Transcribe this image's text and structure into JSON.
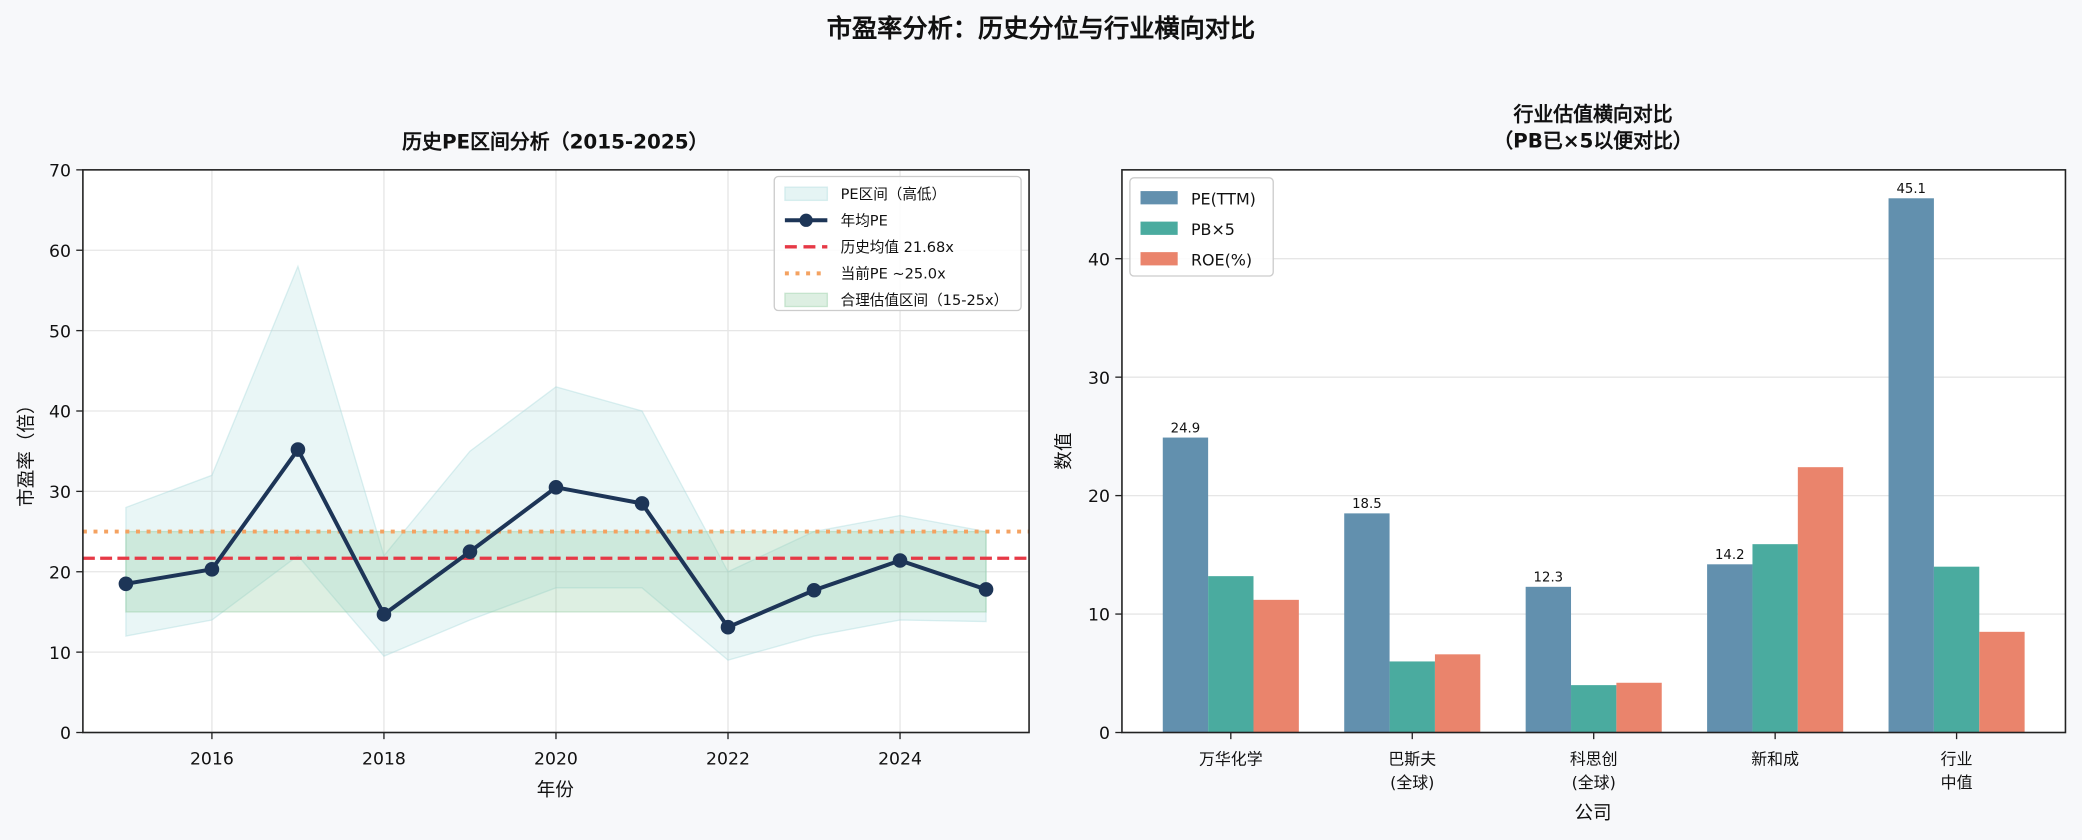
{
  "suptitle": "市盈率分析：历史分位与行业横向对比",
  "colors": {
    "background": "#f7f8fa",
    "pe_line": "#1d3557",
    "hist_mean": "#e63946",
    "current_pe": "#f4a261",
    "pe_range": "#a8dadc",
    "fair_band": "#8fca9e",
    "bar_pe": "#6290ae",
    "bar_pb": "#4aab9f",
    "bar_roe": "#ea846c"
  },
  "chart_data": [
    {
      "type": "line",
      "title": "历史PE区间分析（2015-2025）",
      "xlabel": "年份",
      "ylabel": "市盈率（倍）",
      "xlim": [
        2014.5,
        2025.5
      ],
      "ylim": [
        0,
        70
      ],
      "xticks": [
        2016,
        2018,
        2020,
        2022,
        2024
      ],
      "yticks": [
        0,
        10,
        20,
        30,
        40,
        50,
        60,
        70
      ],
      "grid": true,
      "legend_position": "top-right",
      "x": [
        2015,
        2016,
        2017,
        2018,
        2019,
        2020,
        2021,
        2022,
        2023,
        2024,
        2025
      ],
      "range_high": [
        28,
        32,
        58,
        22,
        35,
        43,
        40,
        20,
        25,
        27,
        25
      ],
      "range_low": [
        12,
        14,
        22,
        9.5,
        14,
        18,
        18,
        9,
        12,
        14,
        13.8
      ],
      "avg_pe": [
        18.5,
        20.3,
        35.2,
        14.7,
        22.5,
        30.5,
        28.5,
        13.1,
        17.7,
        21.4,
        17.8
      ],
      "hist_mean": 21.68,
      "current_pe": 25.0,
      "fair_band": [
        15,
        25
      ],
      "legend": [
        "PE区间（高低）",
        "年均PE",
        "历史均值 21.68x",
        "当前PE ~25.0x",
        "合理估值区间（15-25x）"
      ]
    },
    {
      "type": "bar",
      "title": "行业估值横向对比",
      "subtitle": "（PB已×5以便对比）",
      "xlabel": "公司",
      "ylabel": "数值",
      "ylim": [
        0,
        47.5
      ],
      "yticks": [
        0,
        10,
        20,
        30,
        40
      ],
      "grid": true,
      "legend_position": "top-left",
      "categories": [
        [
          "万华化学"
        ],
        [
          "巴斯夫",
          "(全球)"
        ],
        [
          "科思创",
          "(全球)"
        ],
        [
          "新和成"
        ],
        [
          "行业",
          "中值"
        ]
      ],
      "series": [
        {
          "name": "PE(TTM)",
          "values": [
            24.9,
            18.5,
            12.3,
            14.2,
            45.1
          ],
          "labels": [
            "24.9",
            "18.5",
            "12.3",
            "14.2",
            "45.1"
          ]
        },
        {
          "name": "PB×5",
          "values": [
            13.2,
            6.0,
            4.0,
            15.9,
            14.0
          ]
        },
        {
          "name": "ROE(%)",
          "values": [
            11.2,
            6.6,
            4.2,
            22.4,
            8.5
          ]
        }
      ]
    }
  ]
}
